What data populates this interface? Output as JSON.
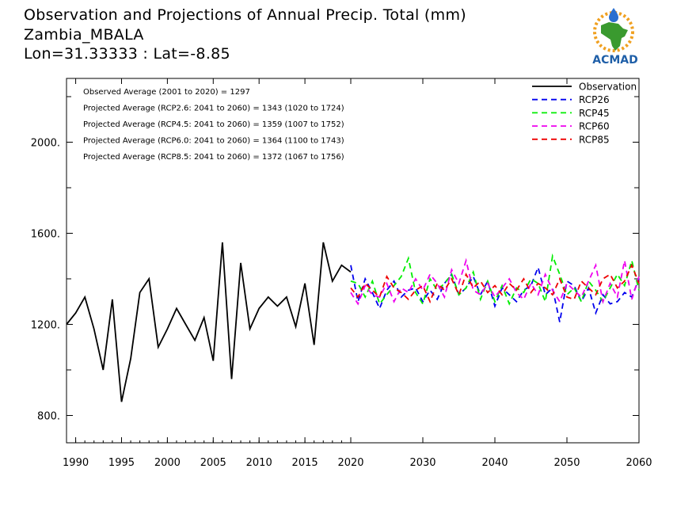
{
  "header": {
    "title": "Observation and Projections of Annual Precip. Total (mm)",
    "location": "Zambia_MBALA",
    "coords": "Lon=31.33333 : Lat=-8.85"
  },
  "logo": {
    "text": "ACMAD",
    "colors": {
      "africa": "#3a9a2f",
      "ring": "#f0a020",
      "text": "#1f5fa8",
      "drop": "#2a6fd0"
    }
  },
  "chart_data": {
    "type": "line",
    "ylim": [
      680,
      2280
    ],
    "yticks": [
      800,
      1200,
      1600,
      2000
    ],
    "ytick_labels": [
      "800.",
      "1200.",
      "1600.",
      "2000."
    ],
    "x_segments": [
      {
        "from": 1989,
        "to": 2020,
        "ticks": [
          1990,
          1995,
          2000,
          2005,
          2010,
          2015,
          2020
        ]
      },
      {
        "from": 2020,
        "to": 2060,
        "ticks": [
          2030,
          2040,
          2050,
          2060
        ]
      }
    ],
    "annotations": [
      "Observed Average (2001 to 2020) = 1297",
      "Projected Average (RCP2.6: 2041 to 2060) = 1343 (1020 to 1724)",
      "Projected Average (RCP4.5: 2041 to 2060) = 1359 (1007 to 1752)",
      "Projected Average (RCP6.0: 2041 to 2060) = 1364 (1100 to 1743)",
      "Projected Average (RCP8.5: 2041 to 2060) = 1372 (1067 to 1756)"
    ],
    "legend_position": "top-right",
    "observation": {
      "name": "Observation",
      "color": "#000000",
      "x": [
        1989,
        1990,
        1991,
        1992,
        1993,
        1994,
        1995,
        1996,
        1997,
        1998,
        1999,
        2000,
        2001,
        2002,
        2003,
        2004,
        2005,
        2006,
        2007,
        2008,
        2009,
        2010,
        2011,
        2012,
        2013,
        2014,
        2015,
        2016,
        2017,
        2018,
        2019,
        2020
      ],
      "y": [
        1200,
        1250,
        1320,
        1180,
        1000,
        1310,
        860,
        1050,
        1340,
        1400,
        1100,
        1180,
        1270,
        1200,
        1130,
        1230,
        1040,
        1560,
        960,
        1470,
        1180,
        1270,
        1320,
        1280,
        1320,
        1190,
        1380,
        1110,
        1560,
        1390,
        1460,
        1430
      ]
    },
    "series": [
      {
        "name": "RCP26",
        "color": "#0000ee",
        "x": [
          2020,
          2021,
          2022,
          2023,
          2024,
          2025,
          2026,
          2027,
          2028,
          2029,
          2030,
          2031,
          2032,
          2033,
          2034,
          2035,
          2036,
          2037,
          2038,
          2039,
          2040,
          2041,
          2042,
          2043,
          2044,
          2045,
          2046,
          2047,
          2048,
          2049,
          2050,
          2051,
          2052,
          2053,
          2054,
          2055,
          2056,
          2057,
          2058,
          2059,
          2060
        ],
        "y": [
          1460,
          1300,
          1400,
          1340,
          1270,
          1350,
          1390,
          1320,
          1350,
          1360,
          1300,
          1350,
          1310,
          1380,
          1420,
          1330,
          1360,
          1410,
          1330,
          1390,
          1280,
          1360,
          1330,
          1300,
          1350,
          1370,
          1450,
          1330,
          1360,
          1210,
          1390,
          1370,
          1300,
          1360,
          1250,
          1330,
          1290,
          1300,
          1340,
          1320,
          1400
        ]
      },
      {
        "name": "RCP45",
        "color": "#00ee00",
        "x": [
          2020,
          2021,
          2022,
          2023,
          2024,
          2025,
          2026,
          2027,
          2028,
          2029,
          2030,
          2031,
          2032,
          2033,
          2034,
          2035,
          2036,
          2037,
          2038,
          2039,
          2040,
          2041,
          2042,
          2043,
          2044,
          2045,
          2046,
          2047,
          2048,
          2049,
          2050,
          2051,
          2052,
          2053,
          2054,
          2055,
          2056,
          2057,
          2058,
          2059,
          2060
        ],
        "y": [
          1390,
          1380,
          1320,
          1390,
          1290,
          1330,
          1370,
          1410,
          1490,
          1340,
          1290,
          1400,
          1350,
          1380,
          1420,
          1330,
          1360,
          1430,
          1310,
          1390,
          1300,
          1370,
          1290,
          1360,
          1340,
          1400,
          1380,
          1300,
          1500,
          1420,
          1330,
          1360,
          1300,
          1390,
          1350,
          1300,
          1360,
          1420,
          1370,
          1480,
          1350
        ]
      },
      {
        "name": "RCP60",
        "color": "#ee00ee",
        "x": [
          2020,
          2021,
          2022,
          2023,
          2024,
          2025,
          2026,
          2027,
          2028,
          2029,
          2030,
          2031,
          2032,
          2033,
          2034,
          2035,
          2036,
          2037,
          2038,
          2039,
          2040,
          2041,
          2042,
          2043,
          2044,
          2045,
          2046,
          2047,
          2048,
          2049,
          2050,
          2051,
          2052,
          2053,
          2054,
          2055,
          2056,
          2057,
          2058,
          2059,
          2060
        ],
        "y": [
          1340,
          1290,
          1370,
          1330,
          1320,
          1380,
          1300,
          1360,
          1340,
          1400,
          1350,
          1420,
          1380,
          1320,
          1440,
          1380,
          1480,
          1350,
          1330,
          1380,
          1320,
          1360,
          1400,
          1340,
          1310,
          1380,
          1330,
          1420,
          1350,
          1300,
          1380,
          1350,
          1320,
          1390,
          1460,
          1300,
          1380,
          1320,
          1480,
          1310,
          1410
        ]
      },
      {
        "name": "RCP85",
        "color": "#ee0000",
        "x": [
          2020,
          2021,
          2022,
          2023,
          2024,
          2025,
          2026,
          2027,
          2028,
          2029,
          2030,
          2031,
          2032,
          2033,
          2034,
          2035,
          2036,
          2037,
          2038,
          2039,
          2040,
          2041,
          2042,
          2043,
          2044,
          2045,
          2046,
          2047,
          2048,
          2049,
          2050,
          2051,
          2052,
          2053,
          2054,
          2055,
          2056,
          2057,
          2058,
          2059,
          2060
        ],
        "y": [
          1360,
          1320,
          1380,
          1350,
          1320,
          1410,
          1360,
          1340,
          1310,
          1350,
          1370,
          1300,
          1380,
          1350,
          1400,
          1330,
          1420,
          1360,
          1390,
          1340,
          1370,
          1330,
          1380,
          1350,
          1400,
          1340,
          1380,
          1360,
          1330,
          1400,
          1320,
          1310,
          1390,
          1360,
          1330,
          1400,
          1420,
          1360,
          1390,
          1460,
          1380
        ]
      }
    ]
  }
}
